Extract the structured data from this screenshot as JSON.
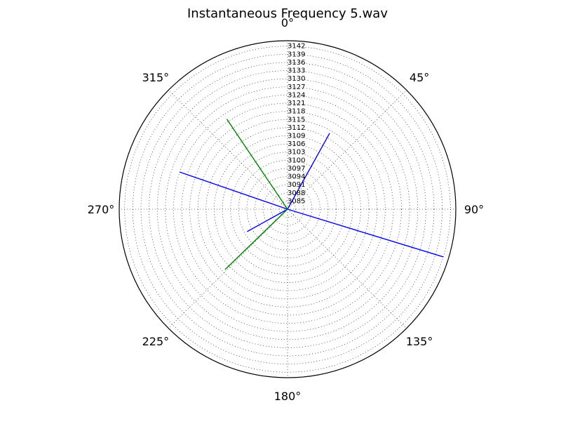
{
  "chart_data": {
    "type": "polar-line",
    "title": "Instantaneous Frequency  5.wav",
    "theta_zero": "top",
    "theta_direction": "clockwise",
    "angle_labels": [
      "0°",
      "45°",
      "90°",
      "135°",
      "180°",
      "225°",
      "270°",
      "315°"
    ],
    "angle_values": [
      0,
      45,
      90,
      135,
      180,
      225,
      270,
      315
    ],
    "r_tick_labels": [
      "3085",
      "3088",
      "3091",
      "3094",
      "3097",
      "3100",
      "3103",
      "3106",
      "3109",
      "3112",
      "3115",
      "3118",
      "3121",
      "3124",
      "3127",
      "3130",
      "3133",
      "3136",
      "3139",
      "3142"
    ],
    "rlim": [
      3082,
      3144
    ],
    "grid": true,
    "series": [
      {
        "color": "#0000ff",
        "points": [
          {
            "theta": 0,
            "r": 3082
          },
          {
            "theta": 29,
            "r": 3114
          },
          {
            "theta": 0,
            "r": 3082
          },
          {
            "theta": 107,
            "r": 3142
          },
          {
            "theta": 0,
            "r": 3082
          },
          {
            "theta": 289,
            "r": 3124
          },
          {
            "theta": 0,
            "r": 3082
          },
          {
            "theta": 241,
            "r": 3099
          }
        ]
      },
      {
        "color": "#008000",
        "points": [
          {
            "theta": 0,
            "r": 3082
          },
          {
            "theta": 326,
            "r": 3122
          },
          {
            "theta": 0,
            "r": 3082
          },
          {
            "theta": 226,
            "r": 3114
          }
        ]
      }
    ]
  }
}
